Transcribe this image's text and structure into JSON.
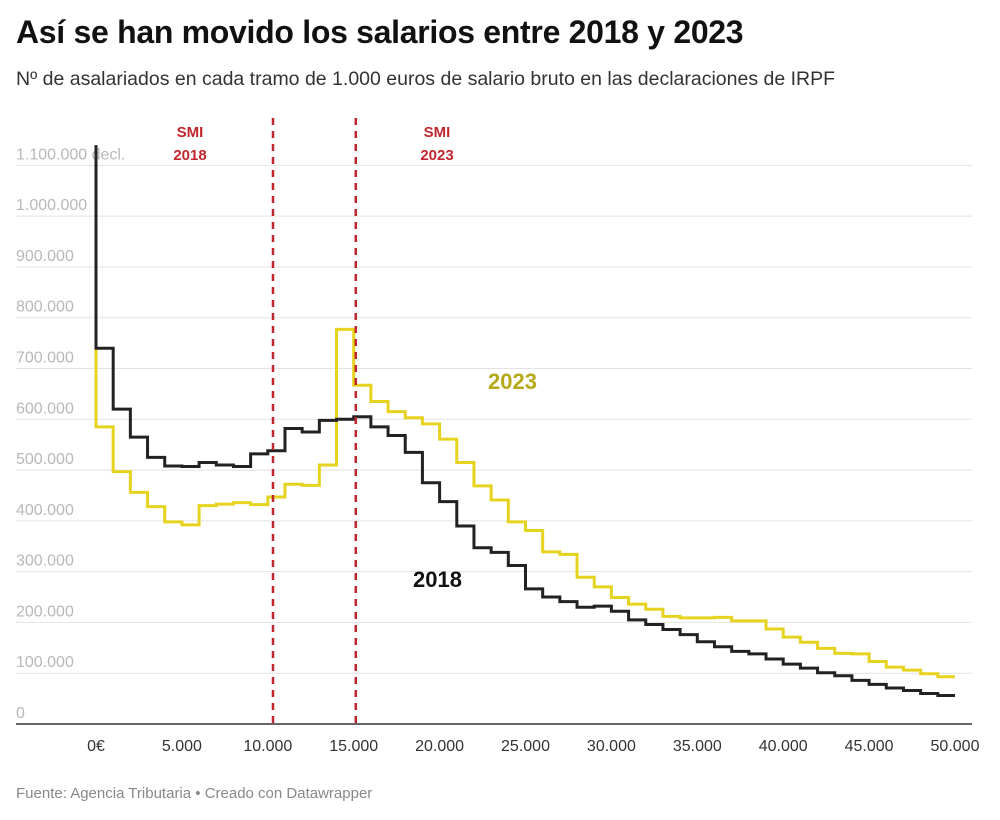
{
  "header": {
    "title": "Así se han movido los salarios entre 2018 y 2023",
    "subtitle": "Nº de asalariados en cada tramo de 1.000 euros de salario bruto en las declaraciones de IRPF"
  },
  "footer": {
    "source": "Fuente: Agencia Tributaria • Creado con Datawrapper"
  },
  "colors": {
    "series_2018": "#222222",
    "series_2023": "#e6d31f",
    "label_2023": "#b7a817",
    "reference_line": "#c0262d",
    "gridline": "#e2e2e2",
    "axis": "#333333",
    "y_tick": "#b8b8b8"
  },
  "chart_data": {
    "type": "line",
    "interpolation": "step",
    "title": "Así se han movido los salarios entre 2018 y 2023",
    "xlabel": "",
    "ylabel": "",
    "xlim": [
      0,
      50000
    ],
    "ylim": [
      0,
      1150000
    ],
    "grid": true,
    "y_ticks": [
      0,
      100000,
      200000,
      300000,
      400000,
      500000,
      600000,
      700000,
      800000,
      900000,
      1000000,
      1100000
    ],
    "y_tick_labels": [
      "0",
      "100.000",
      "200.000",
      "300.000",
      "400.000",
      "500.000",
      "600.000",
      "700.000",
      "800.000",
      "900.000",
      "1.000.000",
      "1.100.000"
    ],
    "y_unit_label": "decl.",
    "x_ticks": [
      0,
      5000,
      10000,
      15000,
      20000,
      25000,
      30000,
      35000,
      40000,
      45000,
      50000
    ],
    "x_tick_labels": [
      "0€",
      "5.000",
      "10.000",
      "15.000",
      "20.000",
      "25.000",
      "30.000",
      "35.000",
      "40.000",
      "45.000",
      "50.000"
    ],
    "x": [
      0,
      1000,
      2000,
      3000,
      4000,
      5000,
      6000,
      7000,
      8000,
      9000,
      10000,
      11000,
      12000,
      13000,
      14000,
      15000,
      16000,
      17000,
      18000,
      19000,
      20000,
      21000,
      22000,
      23000,
      24000,
      25000,
      26000,
      27000,
      28000,
      29000,
      30000,
      31000,
      32000,
      33000,
      34000,
      35000,
      36000,
      37000,
      38000,
      39000,
      40000,
      41000,
      42000,
      43000,
      44000,
      45000,
      46000,
      47000,
      48000,
      49000
    ],
    "series": [
      {
        "name": "2018",
        "start_value": 1140000,
        "values": [
          740000,
          620000,
          565000,
          525000,
          508000,
          507000,
          515000,
          510000,
          507000,
          532000,
          538000,
          582000,
          575000,
          598000,
          600000,
          605000,
          585000,
          568000,
          535000,
          475000,
          438000,
          390000,
          347000,
          338000,
          312000,
          266000,
          250000,
          241000,
          230000,
          232000,
          222000,
          205000,
          196000,
          186000,
          176000,
          162000,
          152000,
          143000,
          138000,
          128000,
          118000,
          110000,
          101000,
          95000,
          86000,
          78000,
          71000,
          66000,
          60000,
          56000
        ]
      },
      {
        "name": "2023",
        "start_value": 855000,
        "values": [
          585000,
          497000,
          456000,
          428000,
          398000,
          392000,
          430000,
          433000,
          436000,
          432000,
          447000,
          472000,
          470000,
          510000,
          777000,
          667000,
          635000,
          615000,
          603000,
          591000,
          561000,
          515000,
          469000,
          441000,
          398000,
          381000,
          339000,
          334000,
          289000,
          270000,
          249000,
          236000,
          226000,
          212000,
          209000,
          209000,
          210000,
          203000,
          203000,
          187000,
          171000,
          161000,
          149000,
          139000,
          138000,
          123000,
          112000,
          106000,
          99000,
          93000
        ]
      }
    ],
    "reference_lines": [
      {
        "x": 10302,
        "label_line1": "SMI",
        "label_line2": "2018"
      },
      {
        "x": 15120,
        "label_line1": "SMI",
        "label_line2": "2023"
      }
    ],
    "series_labels": [
      {
        "series": "2023",
        "text": "2023"
      },
      {
        "series": "2018",
        "text": "2018"
      }
    ]
  }
}
